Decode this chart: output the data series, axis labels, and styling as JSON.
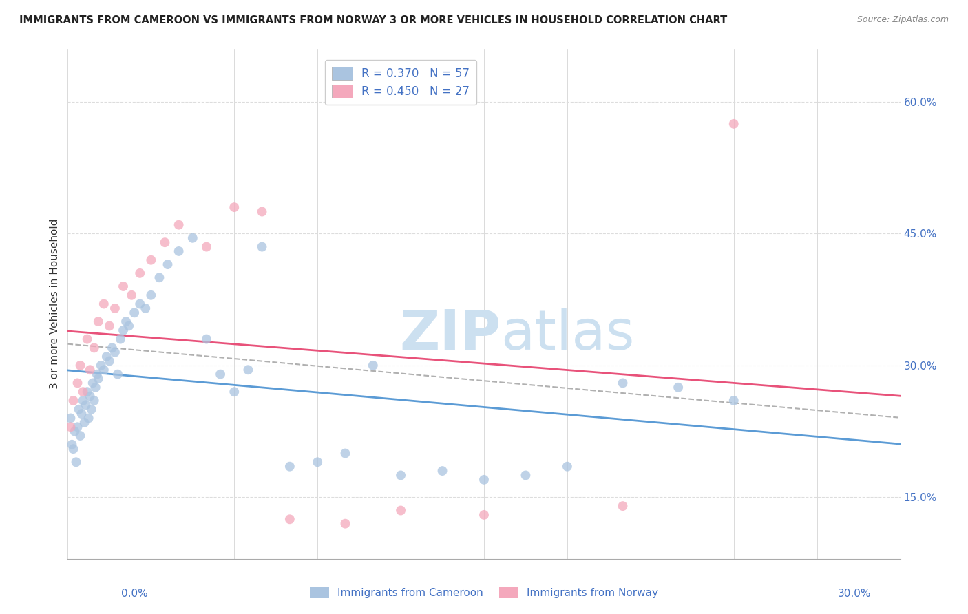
{
  "title": "IMMIGRANTS FROM CAMEROON VS IMMIGRANTS FROM NORWAY 3 OR MORE VEHICLES IN HOUSEHOLD CORRELATION CHART",
  "source": "Source: ZipAtlas.com",
  "ylabel": "3 or more Vehicles in Household",
  "xmin": 0.0,
  "xmax": 30.0,
  "ymin": 8.0,
  "ymax": 66.0,
  "yticks": [
    15.0,
    30.0,
    45.0,
    60.0
  ],
  "r_cameroon": 0.37,
  "n_cameroon": 57,
  "r_norway": 0.45,
  "n_norway": 27,
  "color_cameroon": "#aac4e0",
  "color_norway": "#f4a8bc",
  "line_color_cameroon": "#5b9bd5",
  "line_color_norway": "#e8527a",
  "watermark_zip": "ZIP",
  "watermark_atlas": "atlas",
  "watermark_color": "#cce0f0",
  "legend_text_color": "#4472c4",
  "ytick_color": "#4472c4",
  "cameroon_x": [
    0.1,
    0.15,
    0.2,
    0.25,
    0.3,
    0.35,
    0.4,
    0.45,
    0.5,
    0.55,
    0.6,
    0.65,
    0.7,
    0.75,
    0.8,
    0.85,
    0.9,
    0.95,
    1.0,
    1.05,
    1.1,
    1.2,
    1.3,
    1.4,
    1.5,
    1.6,
    1.7,
    1.8,
    1.9,
    2.0,
    2.1,
    2.2,
    2.4,
    2.6,
    2.8,
    3.0,
    3.3,
    3.6,
    4.0,
    4.5,
    5.0,
    5.5,
    6.0,
    6.5,
    7.0,
    8.0,
    9.0,
    10.0,
    11.0,
    12.0,
    13.5,
    15.0,
    16.5,
    18.0,
    20.0,
    22.0,
    24.0
  ],
  "cameroon_y": [
    24.0,
    21.0,
    20.5,
    22.5,
    19.0,
    23.0,
    25.0,
    22.0,
    24.5,
    26.0,
    23.5,
    25.5,
    27.0,
    24.0,
    26.5,
    25.0,
    28.0,
    26.0,
    27.5,
    29.0,
    28.5,
    30.0,
    29.5,
    31.0,
    30.5,
    32.0,
    31.5,
    29.0,
    33.0,
    34.0,
    35.0,
    34.5,
    36.0,
    37.0,
    36.5,
    38.0,
    40.0,
    41.5,
    43.0,
    44.5,
    33.0,
    29.0,
    27.0,
    29.5,
    43.5,
    18.5,
    19.0,
    20.0,
    30.0,
    17.5,
    18.0,
    17.0,
    17.5,
    18.5,
    28.0,
    27.5,
    26.0
  ],
  "norway_x": [
    0.1,
    0.2,
    0.35,
    0.45,
    0.55,
    0.7,
    0.8,
    0.95,
    1.1,
    1.3,
    1.5,
    1.7,
    2.0,
    2.3,
    2.6,
    3.0,
    3.5,
    4.0,
    5.0,
    6.0,
    7.0,
    8.0,
    10.0,
    12.0,
    15.0,
    20.0,
    24.0
  ],
  "norway_y": [
    23.0,
    26.0,
    28.0,
    30.0,
    27.0,
    33.0,
    29.5,
    32.0,
    35.0,
    37.0,
    34.5,
    36.5,
    39.0,
    38.0,
    40.5,
    42.0,
    44.0,
    46.0,
    43.5,
    48.0,
    47.5,
    12.5,
    12.0,
    13.5,
    13.0,
    14.0,
    57.5
  ]
}
